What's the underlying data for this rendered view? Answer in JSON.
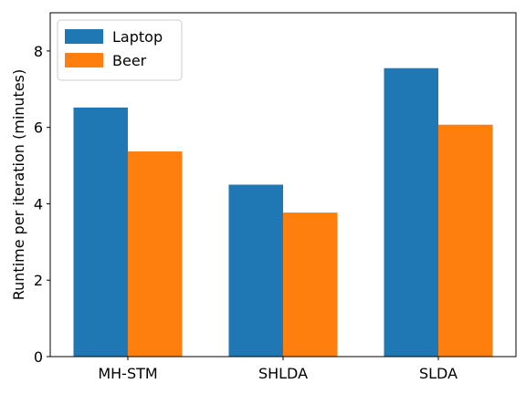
{
  "chart_data": {
    "type": "bar",
    "categories": [
      "MH-STM",
      "SHLDA",
      "SLDA"
    ],
    "series": [
      {
        "name": "Laptop",
        "values": [
          6.52,
          4.5,
          7.55
        ],
        "color": "#1f77b4"
      },
      {
        "name": "Beer",
        "values": [
          5.37,
          3.77,
          6.07
        ],
        "color": "#ff7f0e"
      }
    ],
    "title": "",
    "xlabel": "",
    "ylabel": "Runtime per iteration (minutes)",
    "ylim": [
      0,
      9
    ],
    "yticks": [
      0,
      2,
      4,
      6,
      8
    ],
    "grid": false,
    "legend_position": "top-left"
  }
}
